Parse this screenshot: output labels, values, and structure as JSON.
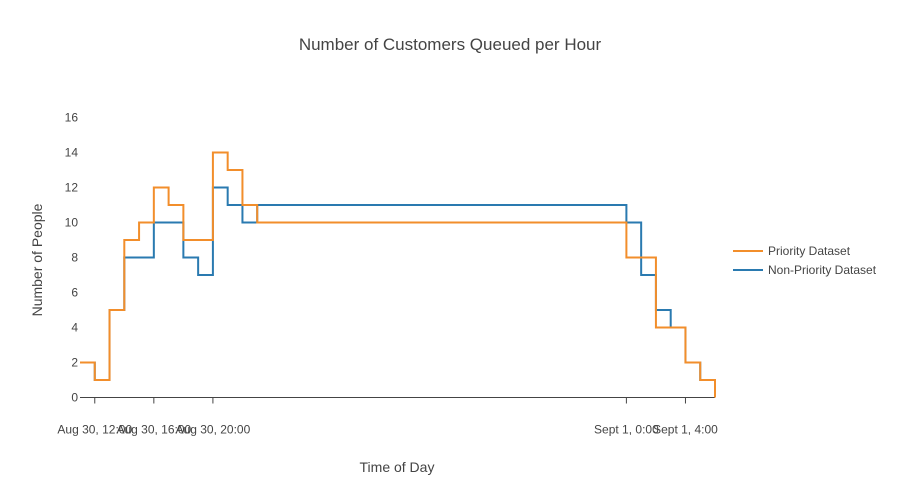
{
  "chart_data": {
    "type": "line",
    "line_shape": "step",
    "title": "Number of Customers Queued per Hour",
    "xlabel": "Time of Day",
    "ylabel": "Number of People",
    "x_axis": {
      "type": "date",
      "range": [
        "2023-08-30T11:00",
        "2023-09-01T06:00"
      ],
      "ticks": [
        {
          "value": "2023-08-30T12:00",
          "label": "Aug 30, 12:00"
        },
        {
          "value": "2023-08-30T16:00",
          "label": "Aug 30, 16:00"
        },
        {
          "value": "2023-08-30T20:00",
          "label": "Aug 30, 20:00"
        },
        {
          "value": "2023-09-01T00:00",
          "label": "Sept 1, 0:00"
        },
        {
          "value": "2023-09-01T04:00",
          "label": "Sept 1, 4:00"
        }
      ]
    },
    "y_axis": {
      "range": [
        -1,
        17
      ],
      "ticks": [
        0,
        2,
        4,
        6,
        8,
        10,
        12,
        14,
        16
      ]
    },
    "grid": false,
    "legend_position": "right",
    "x": [
      "2023-08-30T11:00",
      "2023-08-30T12:00",
      "2023-08-30T13:00",
      "2023-08-30T14:00",
      "2023-08-30T15:00",
      "2023-08-30T16:00",
      "2023-08-30T17:00",
      "2023-08-30T18:00",
      "2023-08-30T19:00",
      "2023-08-30T20:00",
      "2023-08-30T21:00",
      "2023-08-30T22:00",
      "2023-08-30T23:00",
      "2023-09-01T00:00",
      "2023-09-01T01:00",
      "2023-09-01T02:00",
      "2023-09-01T03:00",
      "2023-09-01T04:00",
      "2023-09-01T05:00",
      "2023-09-01T06:00"
    ],
    "series": [
      {
        "name": "Priority Dataset",
        "color": "#f28e2b",
        "values": [
          2,
          1,
          5,
          9,
          10,
          12,
          11,
          9,
          9,
          14,
          13,
          11,
          10,
          8,
          8,
          4,
          4,
          2,
          1,
          0
        ]
      },
      {
        "name": "Non-Priority Dataset",
        "color": "#2a7ab0",
        "values": [
          2,
          1,
          5,
          8,
          8,
          10,
          10,
          8,
          7,
          12,
          11,
          10,
          11,
          10,
          7,
          5,
          4,
          2,
          1,
          0
        ]
      }
    ]
  }
}
